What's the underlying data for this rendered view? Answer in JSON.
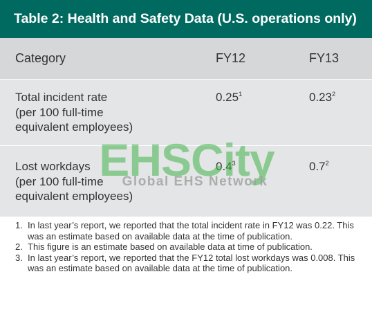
{
  "title": "Table 2: Health and Safety Data (U.S. operations only)",
  "table": {
    "headers": [
      "Category",
      "FY12",
      "FY13"
    ],
    "rows": [
      {
        "category_lines": [
          "Total incident rate",
          "(per 100 full-time",
          "equivalent employees)"
        ],
        "fy12": "0.25",
        "fy12_note": "1",
        "fy13": "0.23",
        "fy13_note": "2"
      },
      {
        "category_lines": [
          "Lost workdays",
          "(per 100 full-time",
          "equivalent employees)"
        ],
        "fy12": "0.4",
        "fy12_note": "3",
        "fy13": "0.7",
        "fy13_note": "2"
      }
    ]
  },
  "watermark": {
    "logo": "EHSCity",
    "tagline": "Global EHS Network"
  },
  "footnotes": [
    {
      "num": "1.",
      "text": "In last year’s report, we reported that the total incident rate in FY12 was 0.22. This was an estimate based on available data at the time of publication."
    },
    {
      "num": "2.",
      "text": "This figure is an estimate based on available data at time of publication."
    },
    {
      "num": "3.",
      "text": "In last year’s report, we reported that the FY12 total lost workdays was 0.008. This was an estimate based on available data at the time of publication."
    }
  ],
  "colors": {
    "title_bg": "#006a61",
    "header_bg": "#d6d7d8",
    "body_bg": "#e4e5e6",
    "watermark": "#3fb54a"
  }
}
